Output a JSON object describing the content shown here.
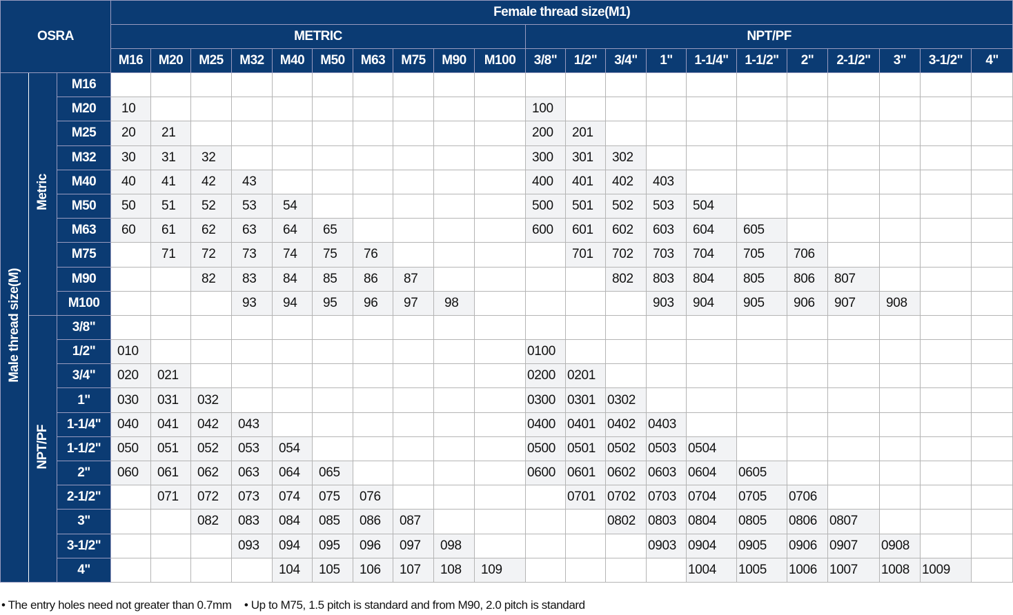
{
  "header": {
    "corner": "OSRA",
    "female_title": "Female thread size(M1)",
    "group_metric": "METRIC",
    "group_npt": "NPT/PF",
    "columns": [
      "M16",
      "M20",
      "M25",
      "M32",
      "M40",
      "M50",
      "M63",
      "M75",
      "M90",
      "M100",
      "3/8\"",
      "1/2\"",
      "3/4\"",
      "1\"",
      "1-1/4\"",
      "1-1/2\"",
      "2\"",
      "2-1/2\"",
      "3\"",
      "3-1/2\"",
      "4\""
    ]
  },
  "side": {
    "male_title": "Male thread size(M)",
    "group_metric": "Metric",
    "group_npt": "NPT/PF"
  },
  "rows": [
    {
      "label": "M16",
      "cells": [
        "",
        "",
        "",
        "",
        "",
        "",
        "",
        "",
        "",
        "",
        "",
        "",
        "",
        "",
        "",
        "",
        "",
        "",
        "",
        "",
        ""
      ]
    },
    {
      "label": "M20",
      "cells": [
        "10",
        "",
        "",
        "",
        "",
        "",
        "",
        "",
        "",
        "",
        "100",
        "",
        "",
        "",
        "",
        "",
        "",
        "",
        "",
        "",
        ""
      ]
    },
    {
      "label": "M25",
      "cells": [
        "20",
        "21",
        "",
        "",
        "",
        "",
        "",
        "",
        "",
        "",
        "200",
        "201",
        "",
        "",
        "",
        "",
        "",
        "",
        "",
        "",
        ""
      ]
    },
    {
      "label": "M32",
      "cells": [
        "30",
        "31",
        "32",
        "",
        "",
        "",
        "",
        "",
        "",
        "",
        "300",
        "301",
        "302",
        "",
        "",
        "",
        "",
        "",
        "",
        "",
        ""
      ]
    },
    {
      "label": "M40",
      "cells": [
        "40",
        "41",
        "42",
        "43",
        "",
        "",
        "",
        "",
        "",
        "",
        "400",
        "401",
        "402",
        "403",
        "",
        "",
        "",
        "",
        "",
        "",
        ""
      ]
    },
    {
      "label": "M50",
      "cells": [
        "50",
        "51",
        "52",
        "53",
        "54",
        "",
        "",
        "",
        "",
        "",
        "500",
        "501",
        "502",
        "503",
        "504",
        "",
        "",
        "",
        "",
        "",
        ""
      ]
    },
    {
      "label": "M63",
      "cells": [
        "60",
        "61",
        "62",
        "63",
        "64",
        "65",
        "",
        "",
        "",
        "",
        "600",
        "601",
        "602",
        "603",
        "604",
        "605",
        "",
        "",
        "",
        "",
        ""
      ]
    },
    {
      "label": "M75",
      "cells": [
        "",
        "71",
        "72",
        "73",
        "74",
        "75",
        "76",
        "",
        "",
        "",
        "",
        "701",
        "702",
        "703",
        "704",
        "705",
        "706",
        "",
        "",
        "",
        ""
      ]
    },
    {
      "label": "M90",
      "cells": [
        "",
        "",
        "82",
        "83",
        "84",
        "85",
        "86",
        "87",
        "",
        "",
        "",
        "",
        "802",
        "803",
        "804",
        "805",
        "806",
        "807",
        "",
        "",
        ""
      ]
    },
    {
      "label": "M100",
      "cells": [
        "",
        "",
        "",
        "93",
        "94",
        "95",
        "96",
        "97",
        "98",
        "",
        "",
        "",
        "",
        "903",
        "904",
        "905",
        "906",
        "907",
        "908",
        "",
        ""
      ]
    },
    {
      "label": "3/8\"",
      "cells": [
        "",
        "",
        "",
        "",
        "",
        "",
        "",
        "",
        "",
        "",
        "",
        "",
        "",
        "",
        "",
        "",
        "",
        "",
        "",
        "",
        ""
      ]
    },
    {
      "label": "1/2\"",
      "cells": [
        "010",
        "",
        "",
        "",
        "",
        "",
        "",
        "",
        "",
        "",
        "0100",
        "",
        "",
        "",
        "",
        "",
        "",
        "",
        "",
        "",
        ""
      ]
    },
    {
      "label": "3/4\"",
      "cells": [
        "020",
        "021",
        "",
        "",
        "",
        "",
        "",
        "",
        "",
        "",
        "0200",
        "0201",
        "",
        "",
        "",
        "",
        "",
        "",
        "",
        "",
        ""
      ]
    },
    {
      "label": "1\"",
      "cells": [
        "030",
        "031",
        "032",
        "",
        "",
        "",
        "",
        "",
        "",
        "",
        "0300",
        "0301",
        "0302",
        "",
        "",
        "",
        "",
        "",
        "",
        "",
        ""
      ]
    },
    {
      "label": "1-1/4\"",
      "cells": [
        "040",
        "041",
        "042",
        "043",
        "",
        "",
        "",
        "",
        "",
        "",
        "0400",
        "0401",
        "0402",
        "0403",
        "",
        "",
        "",
        "",
        "",
        "",
        ""
      ]
    },
    {
      "label": "1-1/2\"",
      "cells": [
        "050",
        "051",
        "052",
        "053",
        "054",
        "",
        "",
        "",
        "",
        "",
        "0500",
        "0501",
        "0502",
        "0503",
        "0504",
        "",
        "",
        "",
        "",
        "",
        ""
      ]
    },
    {
      "label": "2\"",
      "cells": [
        "060",
        "061",
        "062",
        "063",
        "064",
        "065",
        "",
        "",
        "",
        "",
        "0600",
        "0601",
        "0602",
        "0603",
        "0604",
        "0605",
        "",
        "",
        "",
        "",
        ""
      ]
    },
    {
      "label": "2-1/2\"",
      "cells": [
        "",
        "071",
        "072",
        "073",
        "074",
        "075",
        "076",
        "",
        "",
        "",
        "",
        "0701",
        "0702",
        "0703",
        "0704",
        "0705",
        "0706",
        "",
        "",
        "",
        ""
      ]
    },
    {
      "label": "3\"",
      "cells": [
        "",
        "",
        "082",
        "083",
        "084",
        "085",
        "086",
        "087",
        "",
        "",
        "",
        "",
        "0802",
        "0803",
        "0804",
        "0805",
        "0806",
        "0807",
        "",
        "",
        ""
      ]
    },
    {
      "label": "3-1/2\"",
      "cells": [
        "",
        "",
        "",
        "093",
        "094",
        "095",
        "096",
        "097",
        "098",
        "",
        "",
        "",
        "",
        "0903",
        "0904",
        "0905",
        "0906",
        "0907",
        "0908",
        "",
        ""
      ]
    },
    {
      "label": "4\"",
      "cells": [
        "",
        "",
        "",
        "",
        "104",
        "105",
        "106",
        "107",
        "108",
        "109",
        "",
        "",
        "",
        "",
        "1004",
        "1005",
        "1006",
        "1007",
        "1008",
        "1009",
        ""
      ]
    }
  ],
  "footer": {
    "note1": "• The entry holes need not greater than 0.7mm",
    "note2": "• Up to M75, 1.5 pitch is standard and from M90, 2.0 pitch is standard"
  },
  "colors": {
    "header_bg": "#0b3b73",
    "filled_cell": "#f2f3f5",
    "header_text": "#ffffff"
  }
}
